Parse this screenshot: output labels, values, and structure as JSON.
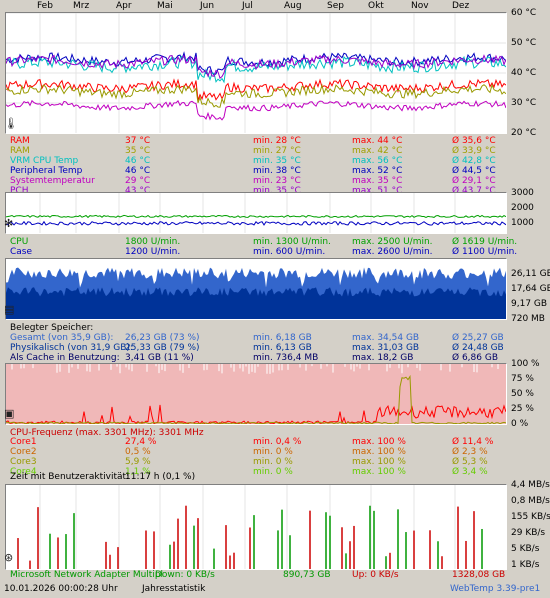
{
  "months": [
    "Feb",
    "Mrz",
    "Apr",
    "Mai",
    "Jun",
    "Jul",
    "Aug",
    "Sep",
    "Okt",
    "Nov",
    "Dez"
  ],
  "temp_chart": {
    "y_ticks": [
      "60 °C",
      "50 °C",
      "40 °C",
      "30 °C",
      "20 °C"
    ],
    "rows": [
      {
        "name": "RAM",
        "cur": "37 °C",
        "min": "min. 28 °C",
        "max": "max. 44 °C",
        "avg": "Ø 35,6 °C",
        "color": "#ff0000"
      },
      {
        "name": "RAM",
        "cur": "35 °C",
        "min": "min. 27 °C",
        "max": "max. 42 °C",
        "avg": "Ø 33,9 °C",
        "color": "#a0a000"
      },
      {
        "name": "VRM CPU Temp",
        "cur": "46 °C",
        "min": "min. 35 °C",
        "max": "max. 56 °C",
        "avg": "Ø 42,8 °C",
        "color": "#00c0c0"
      },
      {
        "name": "Peripheral Temp",
        "cur": "46 °C",
        "min": "min. 38 °C",
        "max": "max. 52 °C",
        "avg": "Ø 44,5 °C",
        "color": "#0000c0"
      },
      {
        "name": "Systemtemperatur",
        "cur": "29 °C",
        "min": "min. 23 °C",
        "max": "max. 35 °C",
        "avg": "Ø 29,1 °C",
        "color": "#c000c0"
      },
      {
        "name": "PCH",
        "cur": "43 °C",
        "min": "min. 35 °C",
        "max": "max. 51 °C",
        "avg": "Ø 43,7 °C",
        "color": "#9900cc"
      }
    ]
  },
  "fan_chart": {
    "y_ticks": [
      "3000",
      "2000",
      "1000"
    ],
    "rows": [
      {
        "name": "CPU",
        "cur": "1800 U/min.",
        "min": "min. 1300 U/min.",
        "max": "max. 2500 U/min.",
        "avg": "Ø 1619 U/min.",
        "color": "#00a000"
      },
      {
        "name": "Case",
        "cur": "1200 U/min.",
        "min": "min. 600 U/min.",
        "max": "max. 2600 U/min.",
        "avg": "Ø 1100 U/min.",
        "color": "#0000c0"
      }
    ]
  },
  "mem_chart": {
    "y_ticks": [
      "26,11 GB",
      "17,64 GB",
      "9,17 GB",
      "720 MB"
    ],
    "header": "Belegter Speicher:",
    "rows": [
      {
        "name": "Gesamt (von 35,9 GB):",
        "cur": "26,23 GB (73 %)",
        "min": "min. 6,18 GB",
        "max": "max. 34,54 GB",
        "avg": "Ø 25,27 GB",
        "color": "#3366cc"
      },
      {
        "name": "Physikalisch (von 31,9 GB):",
        "cur": "25,33 GB (79 %)",
        "min": "min. 6,13 GB",
        "max": "max. 31,03 GB",
        "avg": "Ø 24,48 GB",
        "color": "#003399"
      },
      {
        "name": "Als Cache in Benutzung:",
        "cur": "3,41 GB (11 %)",
        "min": "min. 736,4 MB",
        "max": "max. 18,2 GB",
        "avg": "Ø 6,86 GB",
        "color": "#000066"
      }
    ]
  },
  "cpu_chart": {
    "y_ticks": [
      "100 %",
      "75 %",
      "50 %",
      "25 %",
      "0 %"
    ],
    "header": "CPU-Frequenz (max. 3301 MHz): 3301 MHz",
    "rows": [
      {
        "name": "Core1",
        "cur": "27,4 %",
        "min": "min. 0,4 %",
        "max": "max. 100 %",
        "avg": "Ø 11,4 %",
        "color": "#ff0000"
      },
      {
        "name": "Core2",
        "cur": "0,5 %",
        "min": "min. 0 %",
        "max": "max. 100 %",
        "avg": "Ø 2,3 %",
        "color": "#cc6600"
      },
      {
        "name": "Core3",
        "cur": "5,9 %",
        "min": "min. 0 %",
        "max": "max. 100 %",
        "avg": "Ø 5,3 %",
        "color": "#999900"
      },
      {
        "name": "Core4",
        "cur": "1,1 %",
        "min": "min. 0 %",
        "max": "max. 100 %",
        "avg": "Ø 3,4 %",
        "color": "#66cc00"
      }
    ],
    "activity": "Zeit mit Benutzeraktivität:",
    "activity_value": "11:17 h (0,1 %)"
  },
  "net_chart": {
    "y_ticks": [
      "4,4 MB/s",
      "0,8 MB/s",
      "155 KB/s",
      "29 KB/s",
      "5 KB/s",
      "1 KB/s"
    ],
    "adapter": "Microsoft Network Adapter Multipl",
    "down": "Down: 0 KB/s",
    "down_total": "890,73 GB",
    "up": "Up: 0 KB/s",
    "up_total": "1328,08 GB"
  },
  "footer": {
    "datetime": "10.01.2026 00:00:28 Uhr",
    "mode": "Jahresstatistik",
    "version": "WebTemp 3.39-pre1"
  },
  "colors": {
    "red": "#ff0000",
    "olive": "#999900",
    "teal": "#00c0c0",
    "blue": "#0000c0",
    "purple": "#9900cc",
    "green": "#00a000",
    "cpu_bg": "#f0b8b8"
  }
}
